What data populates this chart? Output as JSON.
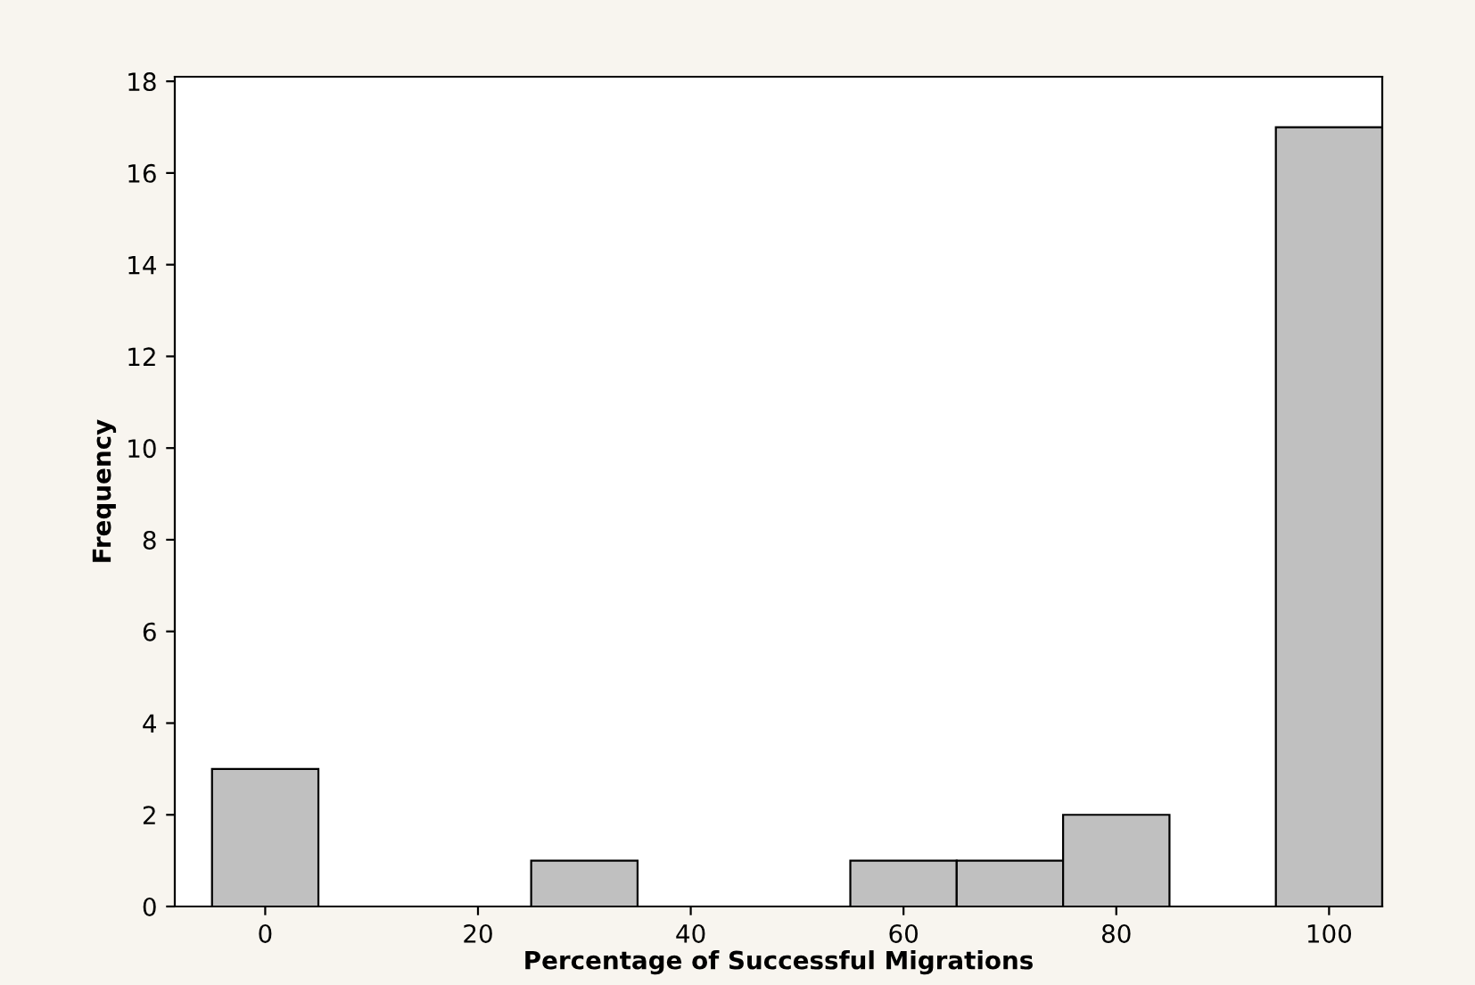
{
  "chart_data": {
    "type": "histogram",
    "xlabel": "Percentage of Successful Migrations",
    "ylabel": "Frequency",
    "bins": [
      -5,
      5,
      15,
      25,
      35,
      45,
      55,
      65,
      75,
      85,
      95,
      105
    ],
    "values": [
      3,
      0,
      0,
      1,
      0,
      0,
      1,
      1,
      2,
      0,
      17
    ],
    "color": "#c0c0c0",
    "xlim": [
      -8.5,
      105
    ],
    "xticks": [
      0,
      20,
      40,
      60,
      80,
      100
    ],
    "ylim": [
      0,
      18.1
    ],
    "yticks": [
      0,
      2,
      4,
      6,
      8,
      10,
      12,
      14,
      16,
      18
    ],
    "grid": false
  }
}
